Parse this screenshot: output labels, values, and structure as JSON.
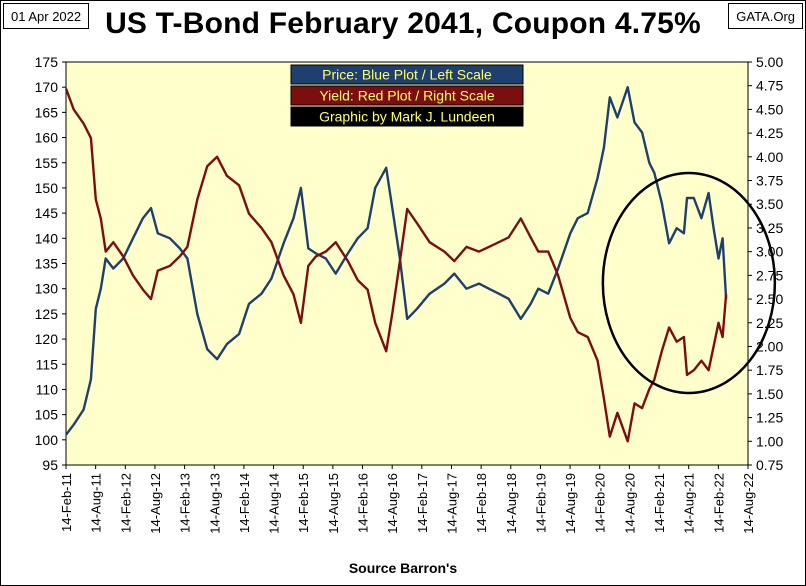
{
  "header": {
    "date": "01 Apr 2022",
    "source_tag": "GATA.Org",
    "title": "US T-Bond February 2041, Coupon 4.75%"
  },
  "footer": {
    "xlabel": "Source Barron's"
  },
  "colors": {
    "plot_bg": "#ffffcc",
    "price": "#1f3f6e",
    "yield": "#7b0f0f",
    "legend_price_bg": "#1f3f6e",
    "legend_yield_bg": "#7b0f0f",
    "legend_credit_bg": "#000000",
    "legend_text": "#ffff66",
    "circle": "#000000"
  },
  "chart_data": {
    "type": "line",
    "legend": [
      {
        "text": "Price:  Blue Plot / Left Scale",
        "color": "#1f3f6e"
      },
      {
        "text": "Yield:  Red Plot / Right Scale",
        "color": "#7b0f0f"
      },
      {
        "text": "Graphic by Mark J. Lundeen",
        "color": "#000000"
      }
    ],
    "legend_position": "top-center",
    "grid": false,
    "x_ticks": [
      "14-Feb-11",
      "14-Aug-11",
      "14-Feb-12",
      "14-Aug-12",
      "14-Feb-13",
      "14-Aug-13",
      "14-Feb-14",
      "14-Aug-14",
      "14-Feb-15",
      "14-Aug-15",
      "14-Feb-16",
      "14-Aug-16",
      "14-Feb-17",
      "14-Aug-17",
      "14-Feb-18",
      "14-Aug-18",
      "14-Feb-19",
      "14-Aug-19",
      "14-Feb-20",
      "14-Aug-20",
      "14-Feb-21",
      "14-Aug-21",
      "14-Feb-22",
      "14-Aug-22"
    ],
    "y_left": {
      "min": 95,
      "max": 175,
      "step": 5,
      "ticks": [
        "95",
        "100",
        "105",
        "110",
        "115",
        "120",
        "125",
        "130",
        "135",
        "140",
        "145",
        "150",
        "155",
        "160",
        "165",
        "170",
        "175"
      ]
    },
    "y_right": {
      "min": 0.75,
      "max": 5.0,
      "step": 0.25,
      "ticks": [
        "0.75",
        "1.00",
        "1.25",
        "1.50",
        "1.75",
        "2.00",
        "2.25",
        "2.50",
        "2.75",
        "3.00",
        "3.25",
        "3.50",
        "3.75",
        "4.00",
        "4.25",
        "4.50",
        "4.75",
        "5.00"
      ]
    },
    "series": [
      {
        "name": "Price",
        "axis": "left",
        "x": [
          "2011-02-14",
          "2011-04-01",
          "2011-06-01",
          "2011-07-15",
          "2011-08-15",
          "2011-09-15",
          "2011-10-15",
          "2011-12-01",
          "2012-02-01",
          "2012-04-01",
          "2012-06-01",
          "2012-07-20",
          "2012-09-01",
          "2012-11-15",
          "2013-01-15",
          "2013-03-01",
          "2013-05-01",
          "2013-07-01",
          "2013-09-01",
          "2013-11-01",
          "2014-01-15",
          "2014-03-15",
          "2014-06-01",
          "2014-08-01",
          "2014-10-15",
          "2014-12-15",
          "2015-01-30",
          "2015-03-15",
          "2015-05-01",
          "2015-07-01",
          "2015-09-01",
          "2015-11-15",
          "2016-01-15",
          "2016-03-15",
          "2016-05-01",
          "2016-07-08",
          "2016-08-15",
          "2016-10-01",
          "2016-11-15",
          "2017-01-15",
          "2017-04-01",
          "2017-07-01",
          "2017-09-01",
          "2017-11-15",
          "2018-02-01",
          "2018-04-01",
          "2018-06-01",
          "2018-08-01",
          "2018-10-15",
          "2018-12-15",
          "2019-02-01",
          "2019-04-01",
          "2019-06-01",
          "2019-08-15",
          "2019-10-01",
          "2019-12-01",
          "2020-02-01",
          "2020-03-09",
          "2020-04-15",
          "2020-06-01",
          "2020-08-04",
          "2020-09-15",
          "2020-11-01",
          "2020-12-15",
          "2021-01-15",
          "2021-03-01",
          "2021-04-15",
          "2021-06-01",
          "2021-07-15",
          "2021-08-04",
          "2021-09-15",
          "2021-11-01",
          "2021-12-15",
          "2022-01-15",
          "2022-02-15",
          "2022-03-10",
          "2022-04-01"
        ],
        "values": [
          101,
          103,
          106,
          112,
          126,
          130,
          136,
          134,
          136,
          140,
          144,
          146,
          141,
          140,
          138,
          136,
          125,
          118,
          116,
          119,
          121,
          127,
          129,
          132,
          139,
          144,
          150,
          138,
          137,
          136,
          133,
          137,
          140,
          142,
          150,
          154,
          146,
          136,
          124,
          126,
          129,
          131,
          133,
          130,
          131,
          130,
          129,
          128,
          124,
          127,
          130,
          129,
          134,
          141,
          144,
          145,
          152,
          158,
          168,
          164,
          170,
          163,
          161,
          155,
          153,
          147,
          139,
          142,
          141,
          148,
          148,
          144,
          149,
          142,
          136,
          140,
          128
        ]
      },
      {
        "name": "Yield",
        "axis": "right",
        "x": [
          "2011-02-14",
          "2011-04-01",
          "2011-06-01",
          "2011-07-15",
          "2011-08-15",
          "2011-09-15",
          "2011-10-15",
          "2011-12-01",
          "2012-02-01",
          "2012-04-01",
          "2012-06-01",
          "2012-07-20",
          "2012-09-01",
          "2012-11-15",
          "2013-01-15",
          "2013-03-01",
          "2013-05-01",
          "2013-07-01",
          "2013-09-01",
          "2013-11-01",
          "2014-01-15",
          "2014-03-15",
          "2014-06-01",
          "2014-08-01",
          "2014-10-15",
          "2014-12-15",
          "2015-01-30",
          "2015-03-15",
          "2015-05-01",
          "2015-07-01",
          "2015-09-01",
          "2015-11-15",
          "2016-01-15",
          "2016-03-15",
          "2016-05-01",
          "2016-07-08",
          "2016-08-15",
          "2016-10-01",
          "2016-11-15",
          "2017-01-15",
          "2017-04-01",
          "2017-07-01",
          "2017-09-01",
          "2017-11-15",
          "2018-02-01",
          "2018-04-01",
          "2018-06-01",
          "2018-08-01",
          "2018-10-15",
          "2018-12-15",
          "2019-02-01",
          "2019-04-01",
          "2019-06-01",
          "2019-08-15",
          "2019-10-01",
          "2019-12-01",
          "2020-02-01",
          "2020-03-09",
          "2020-04-15",
          "2020-06-01",
          "2020-08-04",
          "2020-09-15",
          "2020-11-01",
          "2020-12-15",
          "2021-01-15",
          "2021-03-01",
          "2021-04-15",
          "2021-06-01",
          "2021-07-15",
          "2021-08-04",
          "2021-09-15",
          "2021-11-01",
          "2021-12-15",
          "2022-01-15",
          "2022-02-15",
          "2022-03-10",
          "2022-04-01"
        ],
        "values": [
          4.72,
          4.5,
          4.35,
          4.2,
          3.55,
          3.35,
          3.0,
          3.1,
          2.95,
          2.75,
          2.6,
          2.5,
          2.8,
          2.85,
          2.95,
          3.05,
          3.55,
          3.9,
          4.0,
          3.8,
          3.7,
          3.4,
          3.25,
          3.1,
          2.75,
          2.55,
          2.25,
          2.85,
          2.95,
          3.0,
          3.1,
          2.9,
          2.7,
          2.6,
          2.25,
          1.95,
          2.35,
          2.9,
          3.45,
          3.3,
          3.1,
          3.0,
          2.9,
          3.05,
          3.0,
          3.05,
          3.1,
          3.15,
          3.35,
          3.15,
          3.0,
          3.0,
          2.75,
          2.3,
          2.15,
          2.1,
          1.85,
          1.45,
          1.05,
          1.3,
          1.0,
          1.4,
          1.35,
          1.55,
          1.65,
          1.95,
          2.2,
          2.05,
          2.1,
          1.7,
          1.75,
          1.85,
          1.75,
          2.0,
          2.25,
          2.1,
          2.55
        ]
      }
    ]
  }
}
